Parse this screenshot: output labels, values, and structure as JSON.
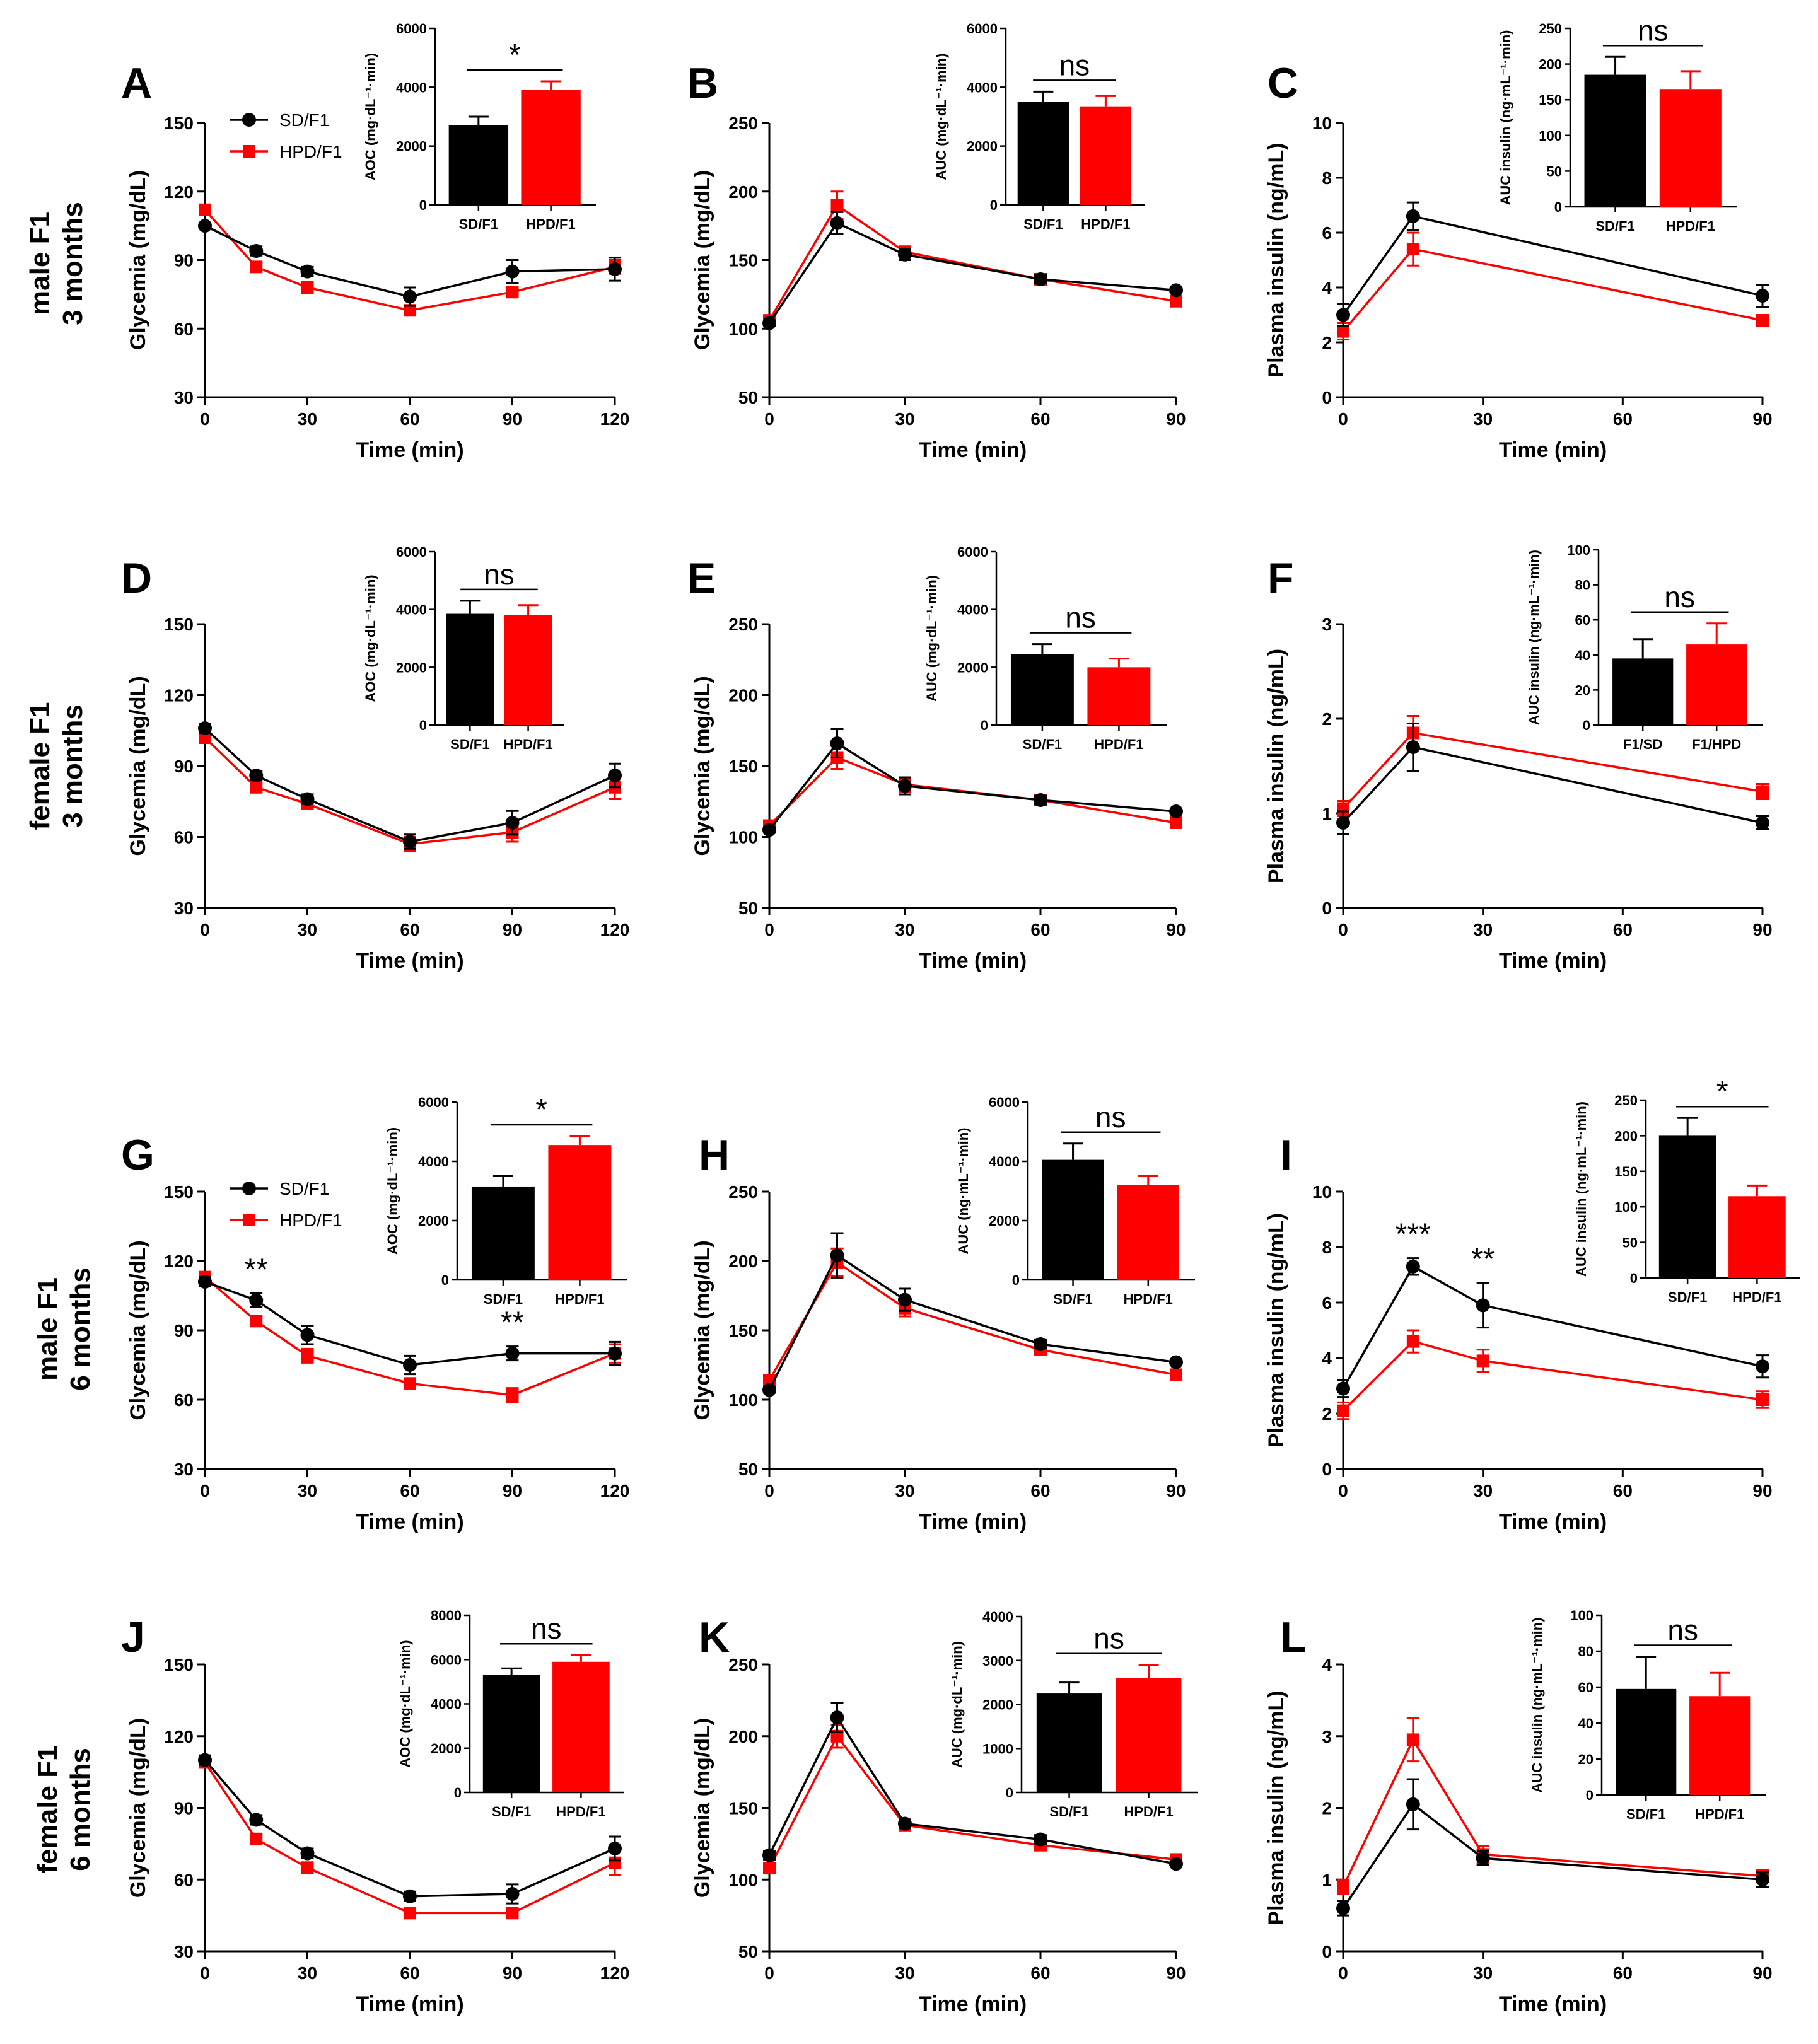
{
  "colors": {
    "sd": "#000000",
    "hpd": "#ff0000",
    "axis": "#000000"
  },
  "row_labels": [
    {
      "line1": "male F1",
      "line2": "3 months"
    },
    {
      "line1": "female F1",
      "line2": "3 months"
    },
    {
      "line1": "male F1",
      "line2": "6 months"
    },
    {
      "line1": "female F1",
      "line2": "6 months"
    }
  ],
  "chart_data": [
    {
      "id": "A",
      "type": "line",
      "xlabel": "Time (min)",
      "ylabel": "Glycemia (mg/dL)",
      "x": [
        0,
        15,
        30,
        60,
        90,
        120
      ],
      "xticks": [
        0,
        30,
        60,
        90,
        120
      ],
      "xlim": [
        0,
        120
      ],
      "ylim": [
        30,
        150
      ],
      "yticks": [
        30,
        60,
        90,
        120,
        150
      ],
      "legend": [
        "SD/F1",
        "HPD/F1"
      ],
      "series": [
        {
          "name": "SD/F1",
          "values": [
            105,
            94,
            85,
            74,
            85,
            86
          ],
          "err": [
            0,
            2,
            2,
            4,
            5,
            5
          ]
        },
        {
          "name": "HPD/F1",
          "values": [
            112,
            87,
            78,
            68,
            76,
            87
          ],
          "err": [
            0,
            2,
            2,
            2,
            2,
            3
          ]
        }
      ],
      "sig": [],
      "inset": {
        "ylabel": "AOC (mg·dL⁻¹·min)",
        "ylim": [
          0,
          6000
        ],
        "yticks": [
          0,
          2000,
          4000,
          6000
        ],
        "categories": [
          "SD/F1",
          "HPD/F1"
        ],
        "values": [
          2700,
          3900
        ],
        "err": [
          300,
          300
        ],
        "sig": "*"
      }
    },
    {
      "id": "B",
      "type": "line",
      "xlabel": "Time (min)",
      "ylabel": "Glycemia (mg/dL)",
      "x": [
        0,
        15,
        30,
        60,
        90
      ],
      "xticks": [
        0,
        30,
        60,
        90
      ],
      "xlim": [
        0,
        90
      ],
      "ylim": [
        50,
        250
      ],
      "yticks": [
        50,
        100,
        150,
        200,
        250
      ],
      "series": [
        {
          "name": "SD/F1",
          "values": [
            104,
            177,
            154,
            136,
            128
          ],
          "err": [
            2,
            8,
            4,
            3,
            2
          ]
        },
        {
          "name": "HPD/F1",
          "values": [
            106,
            190,
            156,
            136,
            120
          ],
          "err": [
            2,
            10,
            4,
            3,
            2
          ]
        }
      ],
      "sig": [],
      "inset": {
        "ylabel": "AUC (mg·dL⁻¹·min)",
        "ylim": [
          0,
          6000
        ],
        "yticks": [
          0,
          2000,
          4000,
          6000
        ],
        "categories": [
          "SD/F1",
          "HPD/F1"
        ],
        "values": [
          3500,
          3350
        ],
        "err": [
          350,
          350
        ],
        "sig": "ns"
      }
    },
    {
      "id": "C",
      "type": "line",
      "xlabel": "Time (min)",
      "ylabel": "Plasma insulin (ng/mL)",
      "x": [
        0,
        15,
        90
      ],
      "xticks": [
        0,
        30,
        60,
        90
      ],
      "xlim": [
        0,
        90
      ],
      "ylim": [
        0,
        10
      ],
      "yticks": [
        0,
        2,
        4,
        6,
        8,
        10
      ],
      "series": [
        {
          "name": "SD/F1",
          "values": [
            3.0,
            6.6,
            3.7
          ],
          "err": [
            0.4,
            0.5,
            0.4
          ]
        },
        {
          "name": "HPD/F1",
          "values": [
            2.4,
            5.4,
            2.8
          ],
          "err": [
            0.3,
            0.6,
            0.2
          ]
        }
      ],
      "sig": [],
      "inset": {
        "ylabel": "AUC insulin (ng·mL⁻¹·min)",
        "ylim": [
          0,
          250
        ],
        "yticks": [
          0,
          50,
          100,
          150,
          200,
          250
        ],
        "categories": [
          "SD/F1",
          "HPD/F1"
        ],
        "values": [
          185,
          165
        ],
        "err": [
          25,
          25
        ],
        "sig": "ns"
      }
    },
    {
      "id": "D",
      "type": "line",
      "xlabel": "Time (min)",
      "ylabel": "Glycemia (mg/dL)",
      "x": [
        0,
        15,
        30,
        60,
        90,
        120
      ],
      "xticks": [
        0,
        30,
        60,
        90,
        120
      ],
      "xlim": [
        0,
        120
      ],
      "ylim": [
        30,
        150
      ],
      "yticks": [
        30,
        60,
        90,
        120,
        150
      ],
      "series": [
        {
          "name": "SD/F1",
          "values": [
            106,
            86,
            76,
            58,
            66,
            86
          ],
          "err": [
            2,
            2,
            2,
            3,
            5,
            5
          ]
        },
        {
          "name": "HPD/F1",
          "values": [
            102,
            81,
            74,
            57,
            62,
            81
          ],
          "err": [
            2,
            2,
            2,
            3,
            4,
            5
          ]
        }
      ],
      "sig": [],
      "inset": {
        "ylabel": "AOC (mg·dL⁻¹·min)",
        "ylim": [
          0,
          6000
        ],
        "yticks": [
          0,
          2000,
          4000,
          6000
        ],
        "categories": [
          "SD/F1",
          "HPD/F1"
        ],
        "values": [
          3850,
          3800
        ],
        "err": [
          450,
          350
        ],
        "sig": "ns"
      }
    },
    {
      "id": "E",
      "type": "line",
      "xlabel": "Time (min)",
      "ylabel": "Glycemia (mg/dL)",
      "x": [
        0,
        15,
        30,
        60,
        90
      ],
      "xticks": [
        0,
        30,
        60,
        90
      ],
      "xlim": [
        0,
        90
      ],
      "ylim": [
        50,
        250
      ],
      "yticks": [
        50,
        100,
        150,
        200,
        250
      ],
      "series": [
        {
          "name": "SD/F1",
          "values": [
            105,
            166,
            136,
            126,
            118
          ],
          "err": [
            2,
            10,
            6,
            3,
            2
          ]
        },
        {
          "name": "HPD/F1",
          "values": [
            108,
            156,
            137,
            126,
            110
          ],
          "err": [
            2,
            8,
            5,
            3,
            2
          ]
        }
      ],
      "sig": [],
      "inset": {
        "ylabel": "AUC (mg·dL⁻¹·min)",
        "ylim": [
          0,
          6000
        ],
        "yticks": [
          0,
          2000,
          4000,
          6000
        ],
        "categories": [
          "SD/F1",
          "HPD/F1"
        ],
        "values": [
          2450,
          2000
        ],
        "err": [
          350,
          300
        ],
        "sig": "ns"
      }
    },
    {
      "id": "F",
      "type": "line",
      "xlabel": "Time (min)",
      "ylabel": "Plasma insulin (ng/mL)",
      "x": [
        0,
        15,
        90
      ],
      "xticks": [
        0,
        30,
        60,
        90
      ],
      "xlim": [
        0,
        90
      ],
      "ylim": [
        0,
        3
      ],
      "yticks": [
        0,
        1,
        2,
        3
      ],
      "series": [
        {
          "name": "SD/F1",
          "values": [
            0.9,
            1.7,
            0.9
          ],
          "err": [
            0.12,
            0.25,
            0.07
          ]
        },
        {
          "name": "HPD/F1",
          "values": [
            1.05,
            1.85,
            1.23
          ],
          "err": [
            0.08,
            0.18,
            0.08
          ]
        }
      ],
      "sig": [],
      "inset": {
        "ylabel": "AUC insulin (ng·mL⁻¹·min)",
        "ylim": [
          0,
          100
        ],
        "yticks": [
          0,
          20,
          40,
          60,
          80,
          100
        ],
        "categories": [
          "F1/SD",
          "F1/HPD"
        ],
        "values": [
          38,
          46
        ],
        "err": [
          11,
          12
        ],
        "sig": "ns"
      }
    },
    {
      "id": "G",
      "type": "line",
      "xlabel": "Time (min)",
      "ylabel": "Glycemia (mg/dL)",
      "x": [
        0,
        15,
        30,
        60,
        90,
        120
      ],
      "xticks": [
        0,
        30,
        60,
        90,
        120
      ],
      "xlim": [
        0,
        120
      ],
      "ylim": [
        30,
        150
      ],
      "yticks": [
        30,
        60,
        90,
        120,
        150
      ],
      "legend": [
        "SD/F1",
        "HPD/F1"
      ],
      "series": [
        {
          "name": "SD/F1",
          "values": [
            111,
            103,
            88,
            75,
            80,
            80
          ],
          "err": [
            2,
            3,
            4,
            4,
            3,
            5
          ]
        },
        {
          "name": "HPD/F1",
          "values": [
            113,
            94,
            79,
            67,
            62,
            80
          ],
          "err": [
            2,
            2,
            3,
            2,
            3,
            4
          ]
        }
      ],
      "sig": [
        {
          "x": 15,
          "label": "**"
        },
        {
          "x": 90,
          "label": "**"
        }
      ],
      "inset": {
        "ylabel": "AOC (mg·dL⁻¹·min)",
        "ylim": [
          0,
          6000
        ],
        "yticks": [
          0,
          2000,
          4000,
          6000
        ],
        "categories": [
          "SD/F1",
          "HPD/F1"
        ],
        "values": [
          3150,
          4550
        ],
        "err": [
          350,
          300
        ],
        "sig": "*"
      }
    },
    {
      "id": "H",
      "type": "line",
      "xlabel": "Time (min)",
      "ylabel": "Glycemia (mg/dL)",
      "x": [
        0,
        15,
        30,
        60,
        90
      ],
      "xticks": [
        0,
        30,
        60,
        90
      ],
      "xlim": [
        0,
        90
      ],
      "ylim": [
        50,
        250
      ],
      "yticks": [
        50,
        100,
        150,
        200,
        250
      ],
      "series": [
        {
          "name": "SD/F1",
          "values": [
            107,
            204,
            172,
            140,
            127
          ],
          "err": [
            2,
            16,
            8,
            3,
            2
          ]
        },
        {
          "name": "HPD/F1",
          "values": [
            114,
            199,
            166,
            136,
            118
          ],
          "err": [
            2,
            10,
            6,
            3,
            3
          ]
        }
      ],
      "sig": [],
      "inset": {
        "ylabel": "AUC (ng·mL⁻¹·min)",
        "ylim": [
          0,
          6000
        ],
        "yticks": [
          0,
          2000,
          4000,
          6000
        ],
        "categories": [
          "SD/F1",
          "HPD/F1"
        ],
        "values": [
          4050,
          3200
        ],
        "err": [
          550,
          300
        ],
        "sig": "ns"
      }
    },
    {
      "id": "I",
      "type": "line",
      "xlabel": "Time (min)",
      "ylabel": "Plasma insulin (ng/mL)",
      "x": [
        0,
        15,
        30,
        90
      ],
      "xticks": [
        0,
        30,
        60,
        90
      ],
      "xlim": [
        0,
        90
      ],
      "ylim": [
        0,
        10
      ],
      "yticks": [
        0,
        2,
        4,
        6,
        8,
        10
      ],
      "series": [
        {
          "name": "SD/F1",
          "values": [
            2.9,
            7.3,
            5.9,
            3.7
          ],
          "err": [
            0.3,
            0.3,
            0.8,
            0.4
          ]
        },
        {
          "name": "HPD/F1",
          "values": [
            2.1,
            4.6,
            3.9,
            2.5
          ],
          "err": [
            0.3,
            0.4,
            0.4,
            0.3
          ]
        }
      ],
      "sig": [
        {
          "x": 15,
          "label": "***"
        },
        {
          "x": 30,
          "label": "**"
        }
      ],
      "inset": {
        "ylabel": "AUC insulin (ng·mL⁻¹·min)",
        "ylim": [
          0,
          250
        ],
        "yticks": [
          0,
          50,
          100,
          150,
          200,
          250
        ],
        "categories": [
          "SD/F1",
          "HPD/F1"
        ],
        "values": [
          200,
          115
        ],
        "err": [
          25,
          15
        ],
        "sig": "*"
      }
    },
    {
      "id": "J",
      "type": "line",
      "xlabel": "Time (min)",
      "ylabel": "Glycemia (mg/dL)",
      "x": [
        0,
        15,
        30,
        60,
        90,
        120
      ],
      "xticks": [
        0,
        30,
        60,
        90,
        120
      ],
      "xlim": [
        0,
        120
      ],
      "ylim": [
        30,
        150
      ],
      "yticks": [
        30,
        60,
        90,
        120,
        150
      ],
      "series": [
        {
          "name": "SD/F1",
          "values": [
            110,
            85,
            71,
            53,
            54,
            73
          ],
          "err": [
            2,
            2,
            2,
            2,
            4,
            5
          ]
        },
        {
          "name": "HPD/F1",
          "values": [
            109,
            77,
            65,
            46,
            46,
            67
          ],
          "err": [
            2,
            2,
            2,
            2,
            2,
            5
          ]
        }
      ],
      "sig": [],
      "inset": {
        "ylabel": "AOC (mg·dL⁻¹·min)",
        "ylim": [
          0,
          8000
        ],
        "yticks": [
          0,
          2000,
          4000,
          6000,
          8000
        ],
        "categories": [
          "SD/F1",
          "HPD/F1"
        ],
        "values": [
          5300,
          5900
        ],
        "err": [
          300,
          300
        ],
        "sig": "ns"
      }
    },
    {
      "id": "K",
      "type": "line",
      "xlabel": "Time (min)",
      "ylabel": "Glycemia (mg/dL)",
      "x": [
        0,
        15,
        30,
        60,
        90
      ],
      "xticks": [
        0,
        30,
        60,
        90
      ],
      "xlim": [
        0,
        90
      ],
      "ylim": [
        50,
        250
      ],
      "yticks": [
        50,
        100,
        150,
        200,
        250
      ],
      "series": [
        {
          "name": "SD/F1",
          "values": [
            117,
            213,
            139,
            128,
            111
          ],
          "err": [
            3,
            10,
            3,
            3,
            2
          ]
        },
        {
          "name": "HPD/F1",
          "values": [
            108,
            200,
            138,
            124,
            114
          ],
          "err": [
            3,
            8,
            3,
            3,
            2
          ]
        }
      ],
      "sig": [],
      "inset": {
        "ylabel": "AUC (mg·dL⁻¹·min)",
        "ylim": [
          0,
          4000
        ],
        "yticks": [
          0,
          1000,
          2000,
          3000,
          4000
        ],
        "categories": [
          "SD/F1",
          "HPD/F1"
        ],
        "values": [
          2250,
          2600
        ],
        "err": [
          250,
          300
        ],
        "sig": "ns"
      }
    },
    {
      "id": "L",
      "type": "line",
      "xlabel": "Time (min)",
      "ylabel": "Plasma insulin (ng/mL)",
      "x": [
        0,
        15,
        30,
        90
      ],
      "xticks": [
        0,
        30,
        60,
        90
      ],
      "xlim": [
        0,
        90
      ],
      "ylim": [
        0,
        4
      ],
      "yticks": [
        0,
        1,
        2,
        3,
        4
      ],
      "series": [
        {
          "name": "SD/F1",
          "values": [
            0.6,
            2.05,
            1.3,
            1.0
          ],
          "err": [
            0.1,
            0.35,
            0.1,
            0.1
          ]
        },
        {
          "name": "HPD/F1",
          "values": [
            0.9,
            2.95,
            1.35,
            1.05
          ],
          "err": [
            0.1,
            0.3,
            0.12,
            0.08
          ]
        }
      ],
      "sig": [],
      "inset": {
        "ylabel": "AUC insulin (ng·mL⁻¹·min)",
        "ylim": [
          0,
          100
        ],
        "yticks": [
          0,
          20,
          40,
          60,
          80,
          100
        ],
        "categories": [
          "SD/F1",
          "HPD/F1"
        ],
        "values": [
          59,
          55
        ],
        "err": [
          18,
          13
        ],
        "sig": "ns"
      }
    }
  ]
}
